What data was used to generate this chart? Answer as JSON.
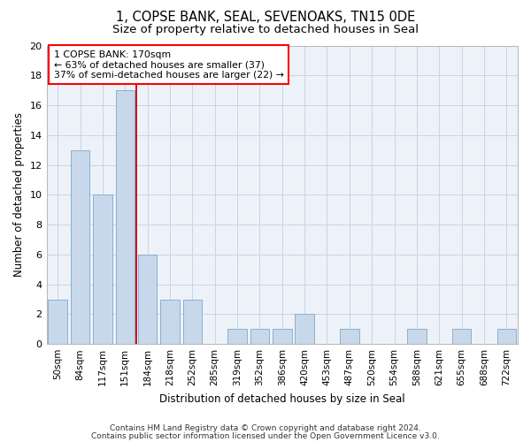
{
  "title1": "1, COPSE BANK, SEAL, SEVENOAKS, TN15 0DE",
  "title2": "Size of property relative to detached houses in Seal",
  "xlabel": "Distribution of detached houses by size in Seal",
  "ylabel": "Number of detached properties",
  "categories": [
    "50sqm",
    "84sqm",
    "117sqm",
    "151sqm",
    "184sqm",
    "218sqm",
    "252sqm",
    "285sqm",
    "319sqm",
    "352sqm",
    "386sqm",
    "420sqm",
    "453sqm",
    "487sqm",
    "520sqm",
    "554sqm",
    "588sqm",
    "621sqm",
    "655sqm",
    "688sqm",
    "722sqm"
  ],
  "values": [
    3,
    13,
    10,
    17,
    6,
    3,
    3,
    0,
    1,
    1,
    1,
    2,
    0,
    1,
    0,
    0,
    1,
    0,
    1,
    0,
    1
  ],
  "bar_color": "#c8d8eb",
  "bar_edgecolor": "#8ab0cc",
  "grid_color": "#c8d4e8",
  "background_color": "#edf2f9",
  "red_line_x": 3.5,
  "annotation_line1": "1 COPSE BANK: 170sqm",
  "annotation_line2": "← 63% of detached houses are smaller (37)",
  "annotation_line3": "37% of semi-detached houses are larger (22) →",
  "footer1": "Contains HM Land Registry data © Crown copyright and database right 2024.",
  "footer2": "Contains public sector information licensed under the Open Government Licence v3.0.",
  "ylim": [
    0,
    20
  ],
  "yticks": [
    0,
    2,
    4,
    6,
    8,
    10,
    12,
    14,
    16,
    18,
    20
  ]
}
